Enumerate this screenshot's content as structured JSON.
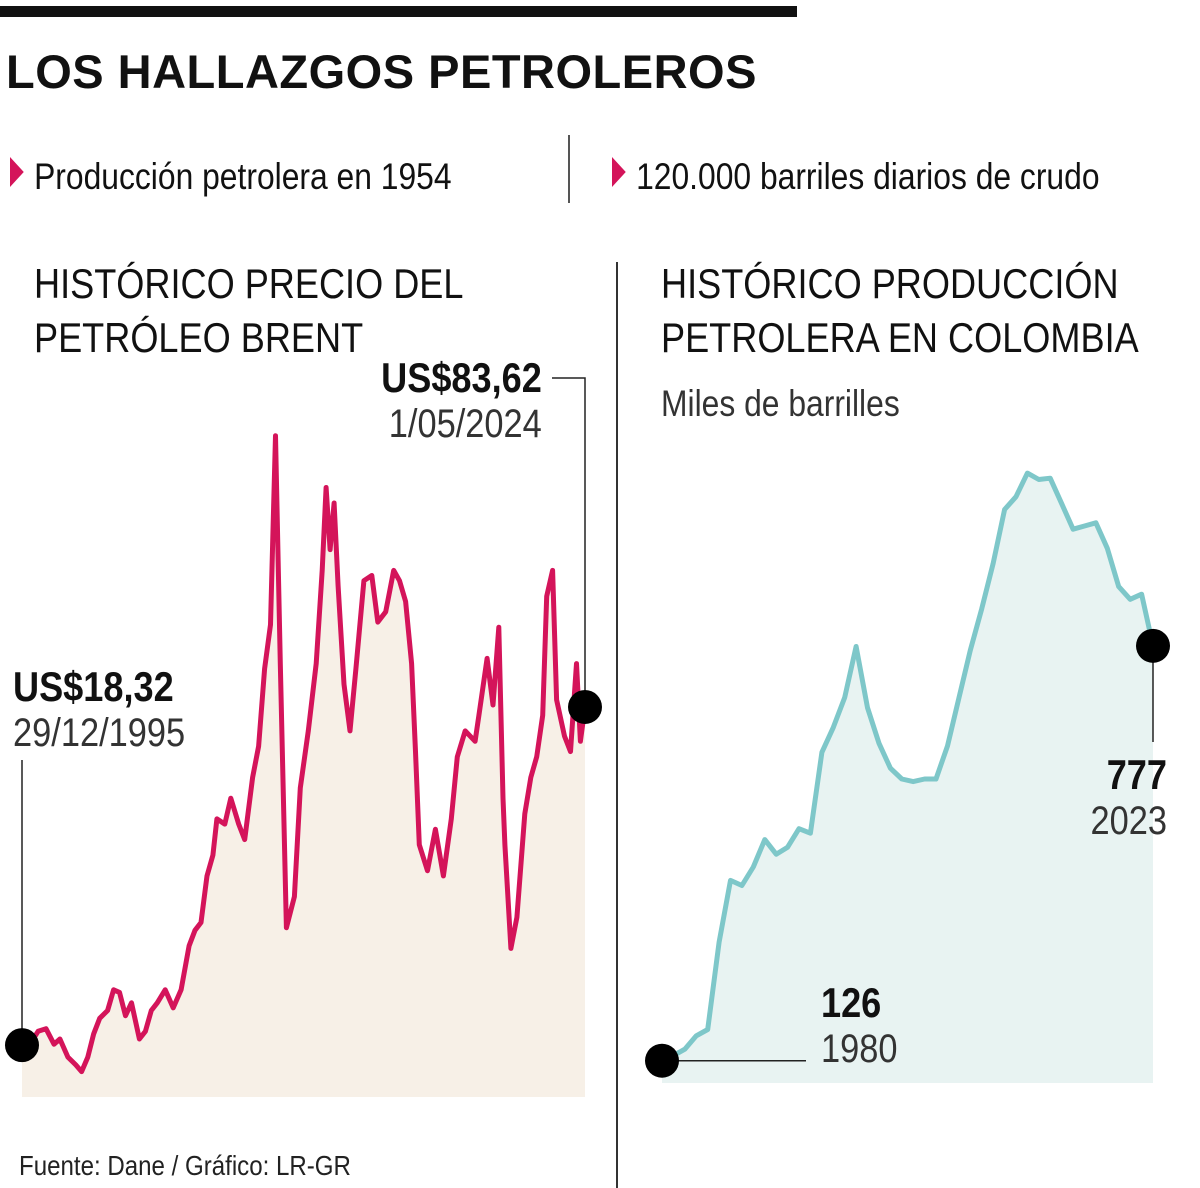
{
  "header": {
    "title": "LOS HALLAZGOS PETROLEROS",
    "fact_1": "Producción petrolera en 1954",
    "fact_2": "120.000 barriles diarios de crudo"
  },
  "colors": {
    "accent": "#d4145a",
    "brent_line": "#d4145a",
    "brent_fill": "#f7f0e7",
    "prod_line": "#7ec7c9",
    "prod_fill": "#e8f3f2",
    "marker": "#000000"
  },
  "chart_data": [
    {
      "type": "area",
      "title": "HISTÓRICO PRECIO DEL PETRÓLEO BRENT",
      "title_line_1": "HISTÓRICO PRECIO DEL",
      "title_line_2": "PETRÓLEO BRENT",
      "xlim": [
        1995.99,
        2024.33
      ],
      "ylim": [
        0,
        140
      ],
      "x": [
        1995.99,
        1996.3,
        1996.8,
        1997.2,
        1997.6,
        1997.9,
        1998.3,
        1998.7,
        1998.99,
        1999.3,
        1999.6,
        1999.9,
        2000.3,
        2000.6,
        2000.9,
        2001.2,
        2001.5,
        2001.9,
        2002.2,
        2002.5,
        2002.8,
        2003.2,
        2003.6,
        2004.0,
        2004.4,
        2004.7,
        2005.0,
        2005.3,
        2005.6,
        2005.8,
        2006.2,
        2006.5,
        2006.9,
        2007.2,
        2007.6,
        2007.9,
        2008.2,
        2008.5,
        2008.75,
        2008.99,
        2009.3,
        2009.7,
        2010.0,
        2010.4,
        2010.8,
        2011.1,
        2011.3,
        2011.5,
        2011.7,
        2011.9,
        2012.2,
        2012.5,
        2012.8,
        2013.2,
        2013.6,
        2013.9,
        2014.3,
        2014.7,
        2014.99,
        2015.3,
        2015.6,
        2015.8,
        2015.99,
        2016.4,
        2016.8,
        2017.2,
        2017.6,
        2017.9,
        2018.3,
        2018.8,
        2018.99,
        2019.4,
        2019.7,
        2019.99,
        2020.2,
        2020.3,
        2020.6,
        2020.9,
        2021.3,
        2021.6,
        2021.9,
        2022.2,
        2022.4,
        2022.7,
        2022.9,
        2023.3,
        2023.6,
        2023.9,
        2024.1,
        2024.33
      ],
      "values": [
        18.32,
        18.0,
        21.0,
        21.5,
        18.5,
        19.5,
        16.0,
        14.5,
        13.2,
        16.0,
        20.5,
        23.5,
        25.0,
        29.0,
        28.5,
        24.0,
        26.5,
        19.5,
        21.0,
        25.0,
        26.5,
        29.0,
        25.5,
        29.0,
        37.5,
        40.5,
        42.0,
        51.0,
        55.0,
        62.0,
        61.0,
        66.0,
        61.0,
        58.0,
        70.0,
        76.0,
        91.0,
        99.5,
        136.0,
        92.0,
        41.0,
        47.0,
        68.0,
        79.0,
        92.0,
        110.0,
        126.0,
        114.0,
        123.0,
        107.0,
        88.0,
        79.0,
        91.0,
        108.0,
        109.0,
        100.0,
        102.0,
        110.0,
        108.0,
        104.0,
        92.0,
        75.0,
        57.0,
        52.0,
        60.0,
        51.0,
        62.0,
        74.0,
        79.0,
        77.0,
        82.0,
        93.0,
        84.0,
        99.0,
        66.0,
        57.0,
        37.0,
        43.0,
        63.0,
        70.0,
        74.0,
        82.0,
        105.0,
        110.0,
        85.0,
        78.0,
        75.0,
        92.0,
        77.0,
        83.62
      ],
      "annotations": [
        {
          "value": "US$18,32",
          "date": "29/12/1995"
        },
        {
          "value": "US$83,62",
          "date": "1/05/2024"
        }
      ]
    },
    {
      "type": "area",
      "title": "HISTÓRICO PRODUCCIÓN PETROLERA EN COLOMBIA",
      "title_line_1": "HISTÓRICO PRODUCCIÓN",
      "title_line_2": "PETROLERA EN COLOMBIA",
      "ylabel": "Miles de barrilles",
      "xlim": [
        1980,
        2023
      ],
      "ylim": [
        0,
        1100
      ],
      "x": [
        1980,
        1981,
        1982,
        1983,
        1984,
        1985,
        1986,
        1987,
        1988,
        1989,
        1990,
        1991,
        1992,
        1993,
        1994,
        1995,
        1996,
        1997,
        1998,
        1999,
        2000,
        2001,
        2002,
        2003,
        2004,
        2005,
        2006,
        2007,
        2008,
        2009,
        2010,
        2011,
        2012,
        2013,
        2014,
        2015,
        2016,
        2017,
        2018,
        2019,
        2020,
        2021,
        2022,
        2023
      ],
      "values": [
        126,
        134,
        144,
        165,
        175,
        312,
        409,
        401,
        430,
        473,
        450,
        461,
        490,
        483,
        610,
        649,
        696,
        776,
        680,
        624,
        585,
        568,
        564,
        568,
        568,
        620,
        695,
        770,
        835,
        906,
        991,
        1011,
        1048,
        1038,
        1040,
        1000,
        960,
        965,
        970,
        930,
        870,
        850,
        858,
        777
      ],
      "annotations": [
        {
          "value": "126",
          "date": "1980"
        },
        {
          "value": "777",
          "date": "2023"
        }
      ]
    }
  ],
  "footer": {
    "source": "Fuente: Dane / Gráfico: LR-GR"
  }
}
